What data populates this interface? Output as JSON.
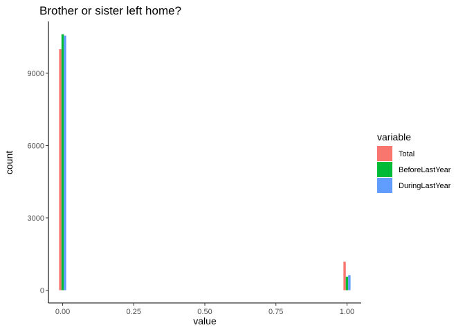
{
  "chart_data": {
    "type": "bar",
    "title": "Brother or sister left home?",
    "xlabel": "value",
    "ylabel": "count",
    "x_ticks": [
      0.0,
      0.25,
      0.5,
      0.75,
      1.0
    ],
    "x_tick_labels": [
      "0.00",
      "0.25",
      "0.50",
      "0.75",
      "1.00"
    ],
    "y_ticks": [
      0,
      3000,
      6000,
      9000
    ],
    "y_tick_labels": [
      "0",
      "3000",
      "6000",
      "9000"
    ],
    "xlim": [
      -0.05,
      1.05
    ],
    "ylim": [
      -530,
      11150
    ],
    "grid": false,
    "legend": {
      "title": "variable",
      "position": "right"
    },
    "x": [
      0,
      1
    ],
    "series": [
      {
        "name": "Total",
        "color": "#F8766D",
        "values": [
          10000,
          1180
        ]
      },
      {
        "name": "BeforeLastYear",
        "color": "#00BA38",
        "values": [
          10620,
          560
        ]
      },
      {
        "name": "DuringLastYear",
        "color": "#619CFF",
        "values": [
          10560,
          620
        ]
      }
    ]
  }
}
